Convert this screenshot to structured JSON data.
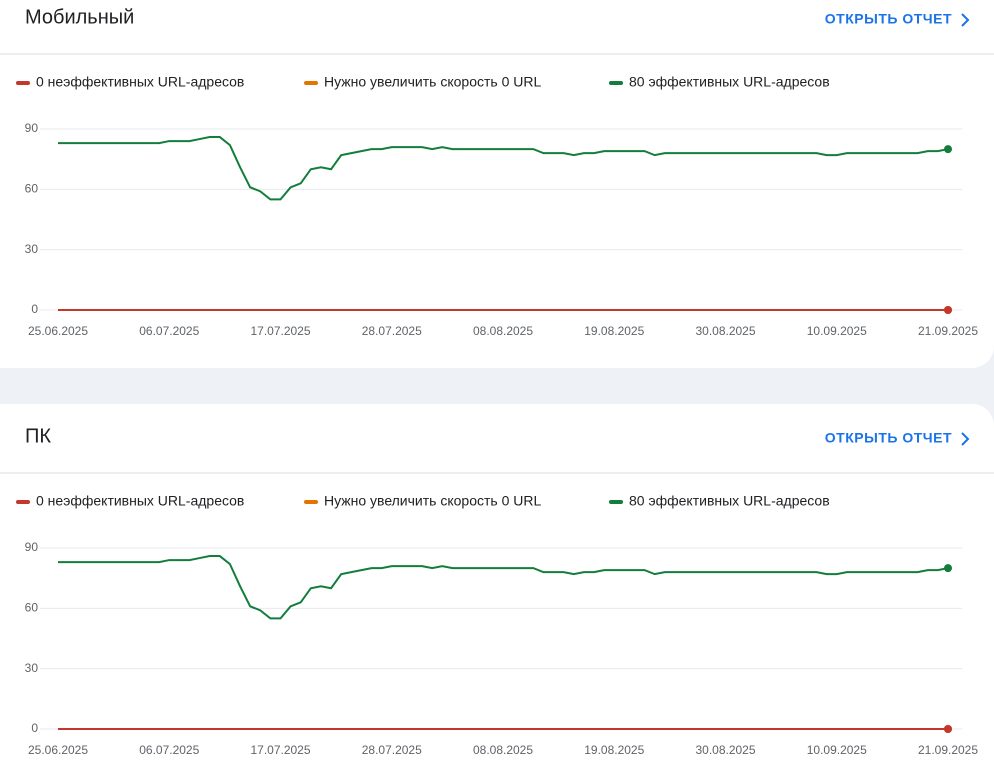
{
  "chart_data": [
    {
      "type": "line",
      "title": "Мобильный",
      "link": "ОТКРЫТЬ ОТЧЕТ",
      "categories": [
        "25.06.2025",
        null,
        null,
        null,
        null,
        null,
        null,
        null,
        null,
        null,
        null,
        "06.07.2025",
        null,
        null,
        null,
        null,
        null,
        null,
        null,
        null,
        null,
        null,
        "17.07.2025",
        null,
        null,
        null,
        null,
        null,
        null,
        null,
        null,
        null,
        null,
        "28.07.2025",
        null,
        null,
        null,
        null,
        null,
        null,
        null,
        null,
        null,
        null,
        "08.08.2025",
        null,
        null,
        null,
        null,
        null,
        null,
        null,
        null,
        null,
        null,
        "19.08.2025",
        null,
        null,
        null,
        null,
        null,
        null,
        null,
        null,
        null,
        null,
        "30.08.2025",
        null,
        null,
        null,
        null,
        null,
        null,
        null,
        null,
        null,
        null,
        "10.09.2025",
        null,
        null,
        null,
        null,
        null,
        null,
        null,
        null,
        null,
        null,
        "21.09.2025"
      ],
      "ylim": [
        0,
        90
      ],
      "yticks": [
        0,
        30,
        60,
        90
      ],
      "grid": true,
      "series": [
        {
          "name": "Нужно увеличить скорость 0 URL",
          "color": "#e37400",
          "values": [
            0,
            0,
            0,
            0,
            0,
            0,
            0,
            0,
            0,
            0,
            0,
            0,
            0,
            0,
            0,
            0,
            0,
            0,
            0,
            0,
            0,
            0,
            0,
            0,
            0,
            0,
            0,
            0,
            0,
            0,
            0,
            0,
            0,
            0,
            0,
            0,
            0,
            0,
            0,
            0,
            0,
            0,
            0,
            0,
            0,
            0,
            0,
            0,
            0,
            0,
            0,
            0,
            0,
            0,
            0,
            0,
            0,
            0,
            0,
            0,
            0,
            0,
            0,
            0,
            0,
            0,
            0,
            0,
            0,
            0,
            0,
            0,
            0,
            0,
            0,
            0,
            0,
            0,
            0,
            0,
            0,
            0,
            0,
            0,
            0,
            0,
            0,
            0,
            0
          ]
        },
        {
          "name": "0 неэффективных URL-адресов",
          "color": "#c5372c",
          "values": [
            0,
            0,
            0,
            0,
            0,
            0,
            0,
            0,
            0,
            0,
            0,
            0,
            0,
            0,
            0,
            0,
            0,
            0,
            0,
            0,
            0,
            0,
            0,
            0,
            0,
            0,
            0,
            0,
            0,
            0,
            0,
            0,
            0,
            0,
            0,
            0,
            0,
            0,
            0,
            0,
            0,
            0,
            0,
            0,
            0,
            0,
            0,
            0,
            0,
            0,
            0,
            0,
            0,
            0,
            0,
            0,
            0,
            0,
            0,
            0,
            0,
            0,
            0,
            0,
            0,
            0,
            0,
            0,
            0,
            0,
            0,
            0,
            0,
            0,
            0,
            0,
            0,
            0,
            0,
            0,
            0,
            0,
            0,
            0,
            0,
            0,
            0,
            0,
            0
          ]
        },
        {
          "name": "80 эффективных URL-адресов",
          "color": "#137d3c",
          "values": [
            83,
            83,
            83,
            83,
            83,
            83,
            83,
            83,
            83,
            83,
            83,
            84,
            84,
            84,
            85,
            86,
            86,
            82,
            71,
            61,
            59,
            55,
            55,
            61,
            63,
            70,
            71,
            70,
            77,
            78,
            79,
            80,
            80,
            81,
            81,
            81,
            81,
            80,
            81,
            80,
            80,
            80,
            80,
            80,
            80,
            80,
            80,
            80,
            78,
            78,
            78,
            77,
            78,
            78,
            79,
            79,
            79,
            79,
            79,
            77,
            78,
            78,
            78,
            78,
            78,
            78,
            78,
            78,
            78,
            78,
            78,
            78,
            78,
            78,
            78,
            78,
            77,
            77,
            78,
            78,
            78,
            78,
            78,
            78,
            78,
            78,
            79,
            79,
            80
          ]
        }
      ],
      "legend_order": [
        1,
        0,
        2
      ]
    },
    {
      "type": "line",
      "title": "ПК",
      "link": "ОТКРЫТЬ ОТЧЕТ",
      "categories": [
        "25.06.2025",
        null,
        null,
        null,
        null,
        null,
        null,
        null,
        null,
        null,
        null,
        "06.07.2025",
        null,
        null,
        null,
        null,
        null,
        null,
        null,
        null,
        null,
        null,
        "17.07.2025",
        null,
        null,
        null,
        null,
        null,
        null,
        null,
        null,
        null,
        null,
        "28.07.2025",
        null,
        null,
        null,
        null,
        null,
        null,
        null,
        null,
        null,
        null,
        "08.08.2025",
        null,
        null,
        null,
        null,
        null,
        null,
        null,
        null,
        null,
        null,
        "19.08.2025",
        null,
        null,
        null,
        null,
        null,
        null,
        null,
        null,
        null,
        null,
        "30.08.2025",
        null,
        null,
        null,
        null,
        null,
        null,
        null,
        null,
        null,
        null,
        "10.09.2025",
        null,
        null,
        null,
        null,
        null,
        null,
        null,
        null,
        null,
        null,
        "21.09.2025"
      ],
      "ylim": [
        0,
        90
      ],
      "yticks": [
        0,
        30,
        60,
        90
      ],
      "grid": true,
      "series": [
        {
          "name": "Нужно увеличить скорость 0 URL",
          "color": "#e37400",
          "values": [
            0,
            0,
            0,
            0,
            0,
            0,
            0,
            0,
            0,
            0,
            0,
            0,
            0,
            0,
            0,
            0,
            0,
            0,
            0,
            0,
            0,
            0,
            0,
            0,
            0,
            0,
            0,
            0,
            0,
            0,
            0,
            0,
            0,
            0,
            0,
            0,
            0,
            0,
            0,
            0,
            0,
            0,
            0,
            0,
            0,
            0,
            0,
            0,
            0,
            0,
            0,
            0,
            0,
            0,
            0,
            0,
            0,
            0,
            0,
            0,
            0,
            0,
            0,
            0,
            0,
            0,
            0,
            0,
            0,
            0,
            0,
            0,
            0,
            0,
            0,
            0,
            0,
            0,
            0,
            0,
            0,
            0,
            0,
            0,
            0,
            0,
            0,
            0,
            0
          ]
        },
        {
          "name": "0 неэффективных URL-адресов",
          "color": "#c5372c",
          "values": [
            0,
            0,
            0,
            0,
            0,
            0,
            0,
            0,
            0,
            0,
            0,
            0,
            0,
            0,
            0,
            0,
            0,
            0,
            0,
            0,
            0,
            0,
            0,
            0,
            0,
            0,
            0,
            0,
            0,
            0,
            0,
            0,
            0,
            0,
            0,
            0,
            0,
            0,
            0,
            0,
            0,
            0,
            0,
            0,
            0,
            0,
            0,
            0,
            0,
            0,
            0,
            0,
            0,
            0,
            0,
            0,
            0,
            0,
            0,
            0,
            0,
            0,
            0,
            0,
            0,
            0,
            0,
            0,
            0,
            0,
            0,
            0,
            0,
            0,
            0,
            0,
            0,
            0,
            0,
            0,
            0,
            0,
            0,
            0,
            0,
            0,
            0,
            0,
            0
          ]
        },
        {
          "name": "80 эффективных URL-адресов",
          "color": "#137d3c",
          "values": [
            83,
            83,
            83,
            83,
            83,
            83,
            83,
            83,
            83,
            83,
            83,
            84,
            84,
            84,
            85,
            86,
            86,
            82,
            71,
            61,
            59,
            55,
            55,
            61,
            63,
            70,
            71,
            70,
            77,
            78,
            79,
            80,
            80,
            81,
            81,
            81,
            81,
            80,
            81,
            80,
            80,
            80,
            80,
            80,
            80,
            80,
            80,
            80,
            78,
            78,
            78,
            77,
            78,
            78,
            79,
            79,
            79,
            79,
            79,
            77,
            78,
            78,
            78,
            78,
            78,
            78,
            78,
            78,
            78,
            78,
            78,
            78,
            78,
            78,
            78,
            78,
            77,
            77,
            78,
            78,
            78,
            78,
            78,
            78,
            78,
            78,
            79,
            79,
            80
          ]
        }
      ],
      "legend_order": [
        1,
        0,
        2
      ]
    }
  ]
}
